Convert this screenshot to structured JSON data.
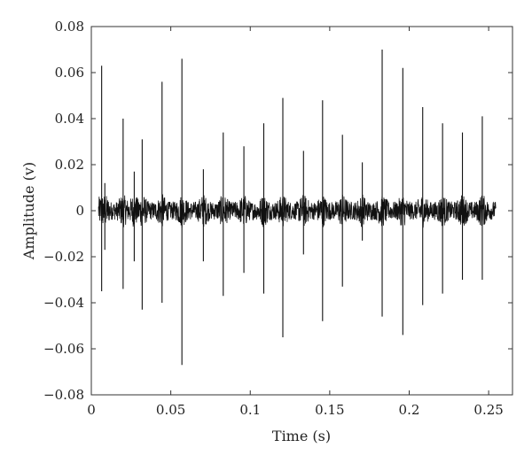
{
  "chart_data": {
    "type": "line",
    "title": "",
    "xlabel": "Time (s)",
    "ylabel": "Amplitude (v)",
    "xlim": [
      0,
      0.265
    ],
    "ylim": [
      -0.08,
      0.08
    ],
    "xticks": [
      0,
      0.05,
      0.1,
      0.15,
      0.2,
      0.25
    ],
    "xtick_labels": [
      "0",
      "0.05",
      "0.1",
      "0.15",
      "0.2",
      "0.25"
    ],
    "yticks": [
      0.08,
      0.06,
      0.04,
      0.02,
      0,
      -0.02,
      -0.04,
      -0.06,
      -0.08
    ],
    "ytick_labels": [
      "0.08",
      "0.06",
      "0.04",
      "0.02",
      "0",
      "−0.02",
      "−0.04",
      "−0.06",
      "−0.08"
    ],
    "grid": false,
    "legend": "none",
    "line_color": "#111111",
    "noise_band": [
      -0.004,
      0.004
    ],
    "series": [
      {
        "spikes": [
          {
            "t": 0.0065,
            "max": 0.063,
            "min": -0.035
          },
          {
            "t": 0.0085,
            "max": 0.012,
            "min": -0.017
          },
          {
            "t": 0.02,
            "max": 0.04,
            "min": -0.034
          },
          {
            "t": 0.027,
            "max": 0.017,
            "min": -0.022
          },
          {
            "t": 0.032,
            "max": 0.031,
            "min": -0.043
          },
          {
            "t": 0.0445,
            "max": 0.056,
            "min": -0.04
          },
          {
            "t": 0.057,
            "max": 0.066,
            "min": -0.067
          },
          {
            "t": 0.0705,
            "max": 0.018,
            "min": -0.022
          },
          {
            "t": 0.083,
            "max": 0.034,
            "min": -0.037
          },
          {
            "t": 0.096,
            "max": 0.028,
            "min": -0.027
          },
          {
            "t": 0.1085,
            "max": 0.038,
            "min": -0.036
          },
          {
            "t": 0.1205,
            "max": 0.049,
            "min": -0.055
          },
          {
            "t": 0.1335,
            "max": 0.026,
            "min": -0.019
          },
          {
            "t": 0.1455,
            "max": 0.048,
            "min": -0.048
          },
          {
            "t": 0.158,
            "max": 0.033,
            "min": -0.033
          },
          {
            "t": 0.1705,
            "max": 0.021,
            "min": -0.013
          },
          {
            "t": 0.183,
            "max": 0.07,
            "min": -0.046
          },
          {
            "t": 0.196,
            "max": 0.062,
            "min": -0.054
          },
          {
            "t": 0.2085,
            "max": 0.045,
            "min": -0.041
          },
          {
            "t": 0.221,
            "max": 0.038,
            "min": -0.036
          },
          {
            "t": 0.2335,
            "max": 0.034,
            "min": -0.03
          },
          {
            "t": 0.246,
            "max": 0.041,
            "min": -0.03
          }
        ]
      }
    ]
  }
}
